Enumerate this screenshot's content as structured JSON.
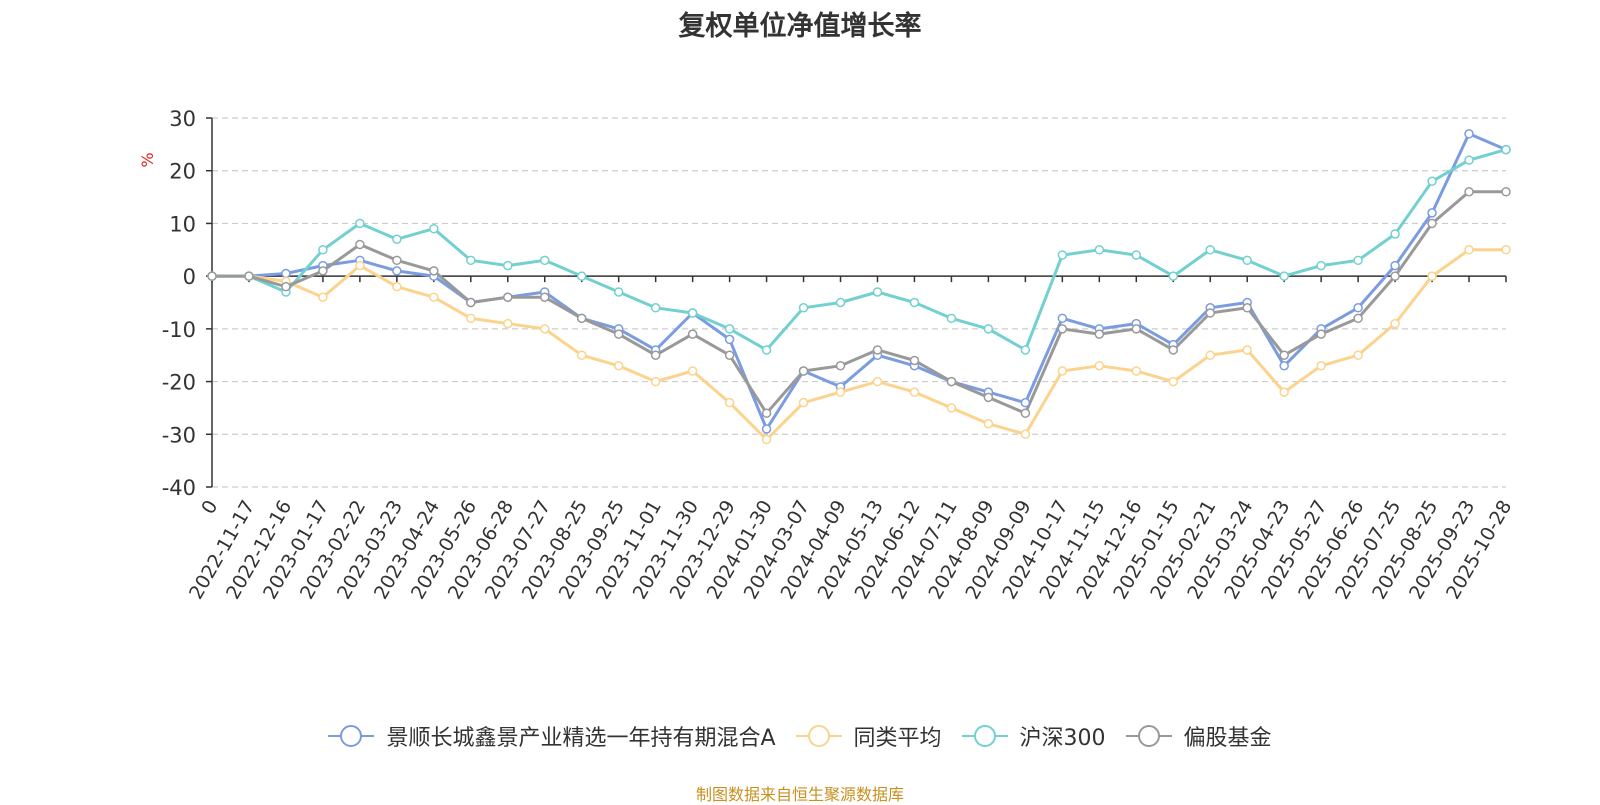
{
  "chart_data": {
    "type": "line",
    "title": "复权单位净值增长率",
    "ylabel": "%",
    "ylim": [
      -40,
      30
    ],
    "yticks": [
      30,
      20,
      10,
      0,
      -10,
      -20,
      -30,
      -40
    ],
    "grid": true,
    "legend_position": "bottom",
    "x_first_label": "0",
    "x_labels": [
      "2022-11-17",
      "2022-12-16",
      "2023-01-17",
      "2023-02-22",
      "2023-03-23",
      "2023-04-24",
      "2023-05-26",
      "2023-06-28",
      "2023-07-27",
      "2023-08-25",
      "2023-09-25",
      "2023-11-01",
      "2023-11-30",
      "2023-12-29",
      "2024-01-30",
      "2024-03-07",
      "2024-04-09",
      "2024-05-13",
      "2024-06-12",
      "2024-07-11",
      "2024-08-09",
      "2024-09-09",
      "2024-10-17",
      "2024-11-15",
      "2024-12-16",
      "2025-01-15",
      "2025-02-21",
      "2025-03-24",
      "2025-04-23",
      "2025-05-27",
      "2025-06-26",
      "2025-07-25",
      "2025-08-25",
      "2025-09-23",
      "2025-10-28"
    ],
    "series": [
      {
        "name": "景顺长城鑫景产业精选一年持有期混合A",
        "color": "#7b9ce0",
        "values": [
          0,
          0.5,
          2,
          3,
          1,
          0,
          -5,
          -4,
          -3,
          -8,
          -10,
          -14,
          -7,
          -12,
          -29,
          -18,
          -21,
          -15,
          -17,
          -20,
          -22,
          -24,
          -8,
          -10,
          -9,
          -13,
          -6,
          -5,
          -17,
          -10,
          -6,
          2,
          12,
          27,
          24
        ]
      },
      {
        "name": "同类平均",
        "color": "#fbd38d",
        "values": [
          0,
          -1,
          -4,
          2,
          -2,
          -4,
          -8,
          -9,
          -10,
          -15,
          -17,
          -20,
          -18,
          -24,
          -31,
          -24,
          -22,
          -20,
          -22,
          -25,
          -28,
          -30,
          -18,
          -17,
          -18,
          -20,
          -15,
          -14,
          -22,
          -17,
          -15,
          -9,
          0,
          5,
          5
        ]
      },
      {
        "name": "沪深300",
        "color": "#73d0d0",
        "values": [
          0,
          -3,
          5,
          10,
          7,
          9,
          3,
          2,
          3,
          0,
          -3,
          -6,
          -7,
          -10,
          -14,
          -6,
          -5,
          -3,
          -5,
          -8,
          -10,
          -14,
          4,
          5,
          4,
          0,
          5,
          3,
          0,
          2,
          3,
          8,
          18,
          22,
          24
        ]
      },
      {
        "name": "偏股基金",
        "color": "#999999",
        "values": [
          0,
          -2,
          1,
          6,
          3,
          1,
          -5,
          -4,
          -4,
          -8,
          -11,
          -15,
          -11,
          -15,
          -26,
          -18,
          -17,
          -14,
          -16,
          -20,
          -23,
          -26,
          -10,
          -11,
          -10,
          -14,
          -7,
          -6,
          -15,
          -11,
          -8,
          0,
          10,
          16,
          16
        ]
      }
    ]
  },
  "source_note": "制图数据来自恒生聚源数据库"
}
